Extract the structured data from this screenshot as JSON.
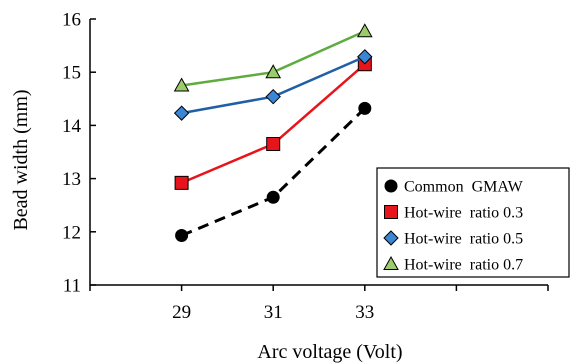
{
  "chart_data": {
    "type": "line",
    "title": "",
    "xlabel": "Arc voltage (Volt)",
    "ylabel": "Bead width (mm)",
    "x": [
      29,
      31,
      33
    ],
    "xlim": [
      27,
      37
    ],
    "ylim": [
      11,
      16
    ],
    "xticks": [
      "29",
      "31",
      "33"
    ],
    "yticks": [
      "11",
      "12",
      "13",
      "14",
      "15",
      "16"
    ],
    "grid": false,
    "legend_position": "bottom-right",
    "series": [
      {
        "name": "Common  GMAW",
        "values": [
          11.93,
          12.65,
          14.32
        ],
        "color": "#000000",
        "marker": "circle",
        "dash": true,
        "marker_color": "#000000"
      },
      {
        "name": "Hot-wire  ratio 0.3",
        "values": [
          12.92,
          13.65,
          15.15
        ],
        "color": "#e8141b",
        "marker": "square",
        "dash": false,
        "marker_color": "#e8141b"
      },
      {
        "name": "Hot-wire  ratio 0.5",
        "values": [
          14.23,
          14.54,
          15.29
        ],
        "color": "#1f5fa6",
        "marker": "diamond",
        "dash": false,
        "marker_color": "#3a86d4"
      },
      {
        "name": "Hot-wire  ratio 0.7",
        "values": [
          14.75,
          15.0,
          15.77
        ],
        "color": "#5eab3e",
        "marker": "triangle",
        "dash": false,
        "marker_color": "#9bcb6a"
      }
    ]
  }
}
